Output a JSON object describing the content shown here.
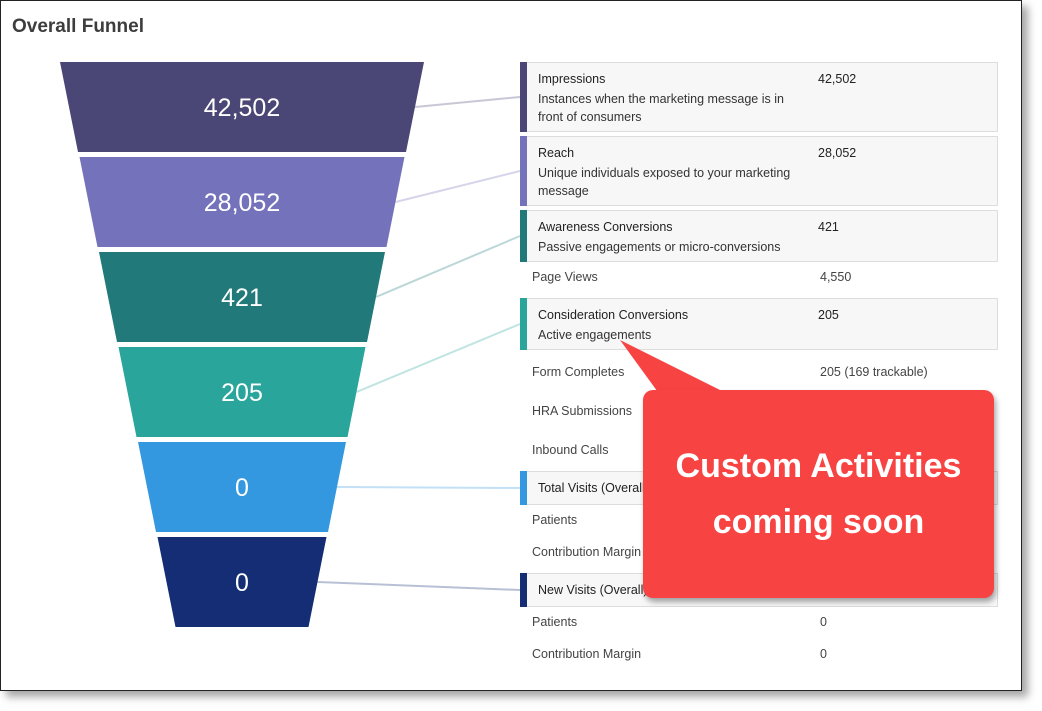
{
  "title": "Overall Funnel",
  "funnel": [
    {
      "value": 42502,
      "label": "42,502",
      "color": "#4a4675"
    },
    {
      "value": 28052,
      "label": "28,052",
      "color": "#7472bb"
    },
    {
      "value": 421,
      "label": "421",
      "color": "#21797a"
    },
    {
      "value": 205,
      "label": "205",
      "color": "#2aa59b"
    },
    {
      "value": 0,
      "label": "0",
      "color": "#3498e0"
    },
    {
      "value": 0,
      "label": "0",
      "color": "#142d74"
    }
  ],
  "cards": [
    {
      "name": "Impressions",
      "desc": "Instances when the marketing message is in front of consumers",
      "value": "42,502"
    },
    {
      "name": "Reach",
      "desc": "Unique individuals exposed to your marketing message",
      "value": "28,052"
    },
    {
      "name": "Awareness Conversions",
      "desc": "Passive engagements or micro-conversions",
      "value": "421"
    },
    {
      "name": "Consideration Conversions",
      "desc": "Active engagements",
      "value": "205"
    },
    {
      "name": "Total Visits (Overall)"
    },
    {
      "name": "New Visits (Overall)"
    }
  ],
  "rows": {
    "page_views": {
      "label": "Page Views",
      "value": "4,550"
    },
    "form_completes": {
      "label": "Form Completes",
      "value": "205 (169 trackable)"
    },
    "hra": {
      "label": "HRA Submissions"
    },
    "inbound": {
      "label": "Inbound Calls"
    },
    "patients1": {
      "label": "Patients"
    },
    "margin1": {
      "label": "Contribution Margin"
    },
    "patients2": {
      "label": "Patients",
      "value": "0"
    },
    "margin2": {
      "label": "Contribution Margin",
      "value": "0"
    }
  },
  "callout": {
    "line1": "Custom Activities",
    "line2": "coming soon",
    "color": "#f84343"
  }
}
